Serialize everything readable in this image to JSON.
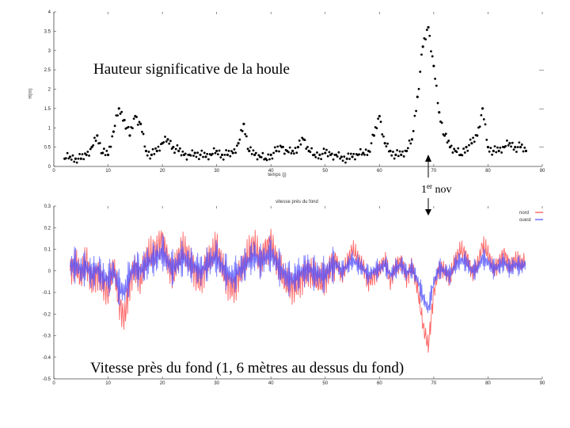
{
  "chart_data": [
    {
      "type": "scatter",
      "title": "Hauteur significative de la houle",
      "xlabel": "temps (j)",
      "ylabel": "H(m)",
      "xlim": [
        0,
        90
      ],
      "ylim": [
        0,
        4
      ],
      "xticks": [
        "0",
        "10",
        "20",
        "30",
        "40",
        "50",
        "60",
        "70",
        "80",
        "90"
      ],
      "yticks": [
        "0",
        "0.5",
        "1",
        "1.5",
        "2",
        "2.5",
        "3",
        "3.5",
        "4"
      ],
      "grid": false,
      "series": [
        {
          "color": "#000000",
          "x": [
            2,
            3,
            4,
            5,
            6,
            7,
            8,
            9,
            10,
            11,
            12,
            13,
            14,
            15,
            16,
            17,
            18,
            19,
            20,
            21,
            22,
            23,
            24,
            25,
            26,
            27,
            28,
            29,
            30,
            31,
            32,
            33,
            34,
            35,
            36,
            37,
            38,
            39,
            40,
            41,
            42,
            43,
            44,
            45,
            46,
            47,
            48,
            49,
            50,
            51,
            52,
            53,
            54,
            55,
            56,
            57,
            58,
            59,
            60,
            61,
            62,
            63,
            64,
            65,
            66,
            67,
            68,
            69,
            70,
            71,
            72,
            73,
            74,
            75,
            76,
            77,
            78,
            79,
            80,
            81,
            82,
            83,
            84,
            85,
            86,
            87
          ],
          "values": [
            0.2,
            0.25,
            0.2,
            0.2,
            0.3,
            0.5,
            0.8,
            0.35,
            0.3,
            0.9,
            1.5,
            1.2,
            0.8,
            1.3,
            1.1,
            0.4,
            0.3,
            0.4,
            0.6,
            0.7,
            0.5,
            0.4,
            0.3,
            0.3,
            0.35,
            0.3,
            0.25,
            0.3,
            0.4,
            0.3,
            0.3,
            0.35,
            0.6,
            1.1,
            0.4,
            0.3,
            0.25,
            0.2,
            0.3,
            0.4,
            0.5,
            0.4,
            0.4,
            0.5,
            0.7,
            0.4,
            0.3,
            0.3,
            0.35,
            0.3,
            0.3,
            0.25,
            0.2,
            0.25,
            0.3,
            0.35,
            0.4,
            0.8,
            1.3,
            0.6,
            0.4,
            0.3,
            0.3,
            0.4,
            0.7,
            1.8,
            3.1,
            3.6,
            2.6,
            1.4,
            0.8,
            0.5,
            0.4,
            0.3,
            0.5,
            0.6,
            0.8,
            1.5,
            0.5,
            0.4,
            0.4,
            0.5,
            0.6,
            0.5,
            0.5,
            0.4
          ]
        }
      ],
      "right_ticks": [
        "—",
        "—",
        "—"
      ]
    },
    {
      "type": "line",
      "title": "vitesse près du fond",
      "xlabel": "",
      "ylabel": "",
      "xlim": [
        0,
        90
      ],
      "ylim": [
        -0.5,
        0.3
      ],
      "xticks": [
        "0",
        "10",
        "20",
        "30",
        "40",
        "50",
        "60",
        "70",
        "80",
        "90"
      ],
      "yticks": [
        "-0.5",
        "-0.4",
        "-0.3",
        "-0.2",
        "-0.1",
        "0",
        "0.1",
        "0.2",
        "0.3"
      ],
      "grid": false,
      "legend_position": "top-right",
      "legend": [
        "nord",
        "ouest"
      ],
      "series": [
        {
          "name": "nord",
          "color": "#ff4a4a",
          "x": [
            3,
            4,
            5,
            6,
            7,
            8,
            9,
            10,
            11,
            12,
            13,
            14,
            15,
            16,
            17,
            18,
            19,
            20,
            21,
            22,
            23,
            24,
            25,
            26,
            27,
            28,
            29,
            30,
            31,
            32,
            33,
            34,
            35,
            36,
            37,
            38,
            39,
            40,
            41,
            42,
            43,
            44,
            45,
            46,
            47,
            48,
            49,
            50,
            51,
            52,
            53,
            54,
            55,
            56,
            57,
            58,
            59,
            60,
            61,
            62,
            63,
            64,
            65,
            66,
            67,
            68,
            69,
            70,
            71,
            72,
            73,
            74,
            75,
            76,
            77,
            78,
            79,
            80,
            81,
            82,
            83,
            84,
            85,
            86,
            87
          ],
          "values": [
            0.0,
            0.02,
            -0.03,
            0.05,
            -0.05,
            0.0,
            -0.06,
            -0.1,
            0.02,
            -0.15,
            -0.22,
            -0.05,
            0.02,
            -0.05,
            0.05,
            0.08,
            0.1,
            0.15,
            0.05,
            -0.02,
            0.06,
            0.1,
            0.05,
            0.0,
            -0.04,
            0.02,
            0.07,
            0.1,
            0.02,
            -0.05,
            -0.08,
            -0.03,
            0.03,
            0.08,
            0.12,
            0.05,
            0.1,
            0.13,
            0.05,
            -0.02,
            -0.06,
            -0.08,
            -0.05,
            -0.02,
            0.0,
            -0.03,
            -0.05,
            -0.04,
            0.02,
            0.05,
            -0.02,
            0.03,
            0.1,
            0.06,
            0.02,
            -0.05,
            -0.02,
            0.0,
            0.05,
            -0.05,
            0.02,
            0.05,
            -0.03,
            0.02,
            -0.08,
            -0.25,
            -0.35,
            -0.1,
            0.02,
            0.0,
            -0.04,
            0.05,
            0.1,
            0.07,
            0.0,
            0.02,
            0.12,
            0.08,
            0.0,
            0.04,
            0.08,
            0.02,
            0.05,
            0.03,
            0.05
          ]
        },
        {
          "name": "ouest",
          "color": "#4a4aff",
          "x": [
            3,
            4,
            5,
            6,
            7,
            8,
            9,
            10,
            11,
            12,
            13,
            14,
            15,
            16,
            17,
            18,
            19,
            20,
            21,
            22,
            23,
            24,
            25,
            26,
            27,
            28,
            29,
            30,
            31,
            32,
            33,
            34,
            35,
            36,
            37,
            38,
            39,
            40,
            41,
            42,
            43,
            44,
            45,
            46,
            47,
            48,
            49,
            50,
            51,
            52,
            53,
            54,
            55,
            56,
            57,
            58,
            59,
            60,
            61,
            62,
            63,
            64,
            65,
            66,
            67,
            68,
            69,
            70,
            71,
            72,
            73,
            74,
            75,
            76,
            77,
            78,
            79,
            80,
            81,
            82,
            83,
            84,
            85,
            86,
            87
          ],
          "values": [
            0.02,
            0.03,
            0.0,
            0.02,
            -0.02,
            0.01,
            -0.03,
            -0.04,
            0.0,
            -0.08,
            -0.1,
            -0.02,
            0.02,
            0.0,
            0.03,
            0.05,
            0.06,
            0.09,
            0.04,
            0.01,
            0.04,
            0.06,
            0.03,
            0.02,
            0.0,
            0.02,
            0.05,
            0.06,
            0.02,
            -0.01,
            -0.03,
            0.0,
            0.02,
            0.05,
            0.07,
            0.04,
            0.06,
            0.08,
            0.04,
            0.0,
            -0.03,
            -0.04,
            -0.02,
            0.0,
            0.01,
            -0.01,
            -0.02,
            -0.02,
            0.02,
            0.03,
            0.0,
            0.02,
            0.05,
            0.03,
            0.01,
            -0.02,
            0.0,
            0.01,
            0.03,
            -0.02,
            0.01,
            0.03,
            -0.01,
            0.01,
            -0.04,
            -0.12,
            -0.18,
            -0.05,
            0.01,
            0.0,
            -0.02,
            0.03,
            0.05,
            0.04,
            0.0,
            0.01,
            0.06,
            0.04,
            0.01,
            0.02,
            0.04,
            0.01,
            0.03,
            0.02,
            0.03
          ]
        }
      ]
    }
  ],
  "annotations": {
    "top_title": "Hauteur significative de la houle",
    "arrow_label_base": "1",
    "arrow_label_sup": "er",
    "arrow_label_rest": " nov",
    "bottom_caption": "Vitesse près du fond (1, 6 mètres au dessus du fond)",
    "bottom_subtitle": "vitesse près du fond"
  }
}
